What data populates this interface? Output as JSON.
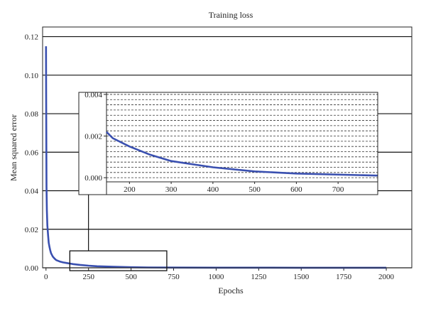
{
  "chart_data": {
    "type": "line",
    "title": "Training loss",
    "xlabel": "Epochs",
    "ylabel": "Mean squared error",
    "xlim": [
      -20,
      2150
    ],
    "ylim": [
      0,
      0.125
    ],
    "xticks": [
      0,
      250,
      500,
      750,
      1000,
      1250,
      1500,
      1750,
      2000
    ],
    "yticks": [
      0.0,
      0.02,
      0.04,
      0.06,
      0.08,
      0.1,
      0.12
    ],
    "xtick_labels": [
      "0",
      "250",
      "500",
      "750",
      "1000",
      "1250",
      "1500",
      "1750",
      "2000"
    ],
    "ytick_labels": [
      "0.00",
      "0.02",
      "0.04",
      "0.06",
      "0.08",
      "0.10",
      "0.12"
    ],
    "grid": "horizontal",
    "series": [
      {
        "color": "#3a50b0",
        "x": [
          0,
          1,
          2,
          3,
          5,
          8,
          12,
          16,
          20,
          25,
          30,
          40,
          50,
          60,
          80,
          100,
          120,
          140,
          160,
          200,
          250,
          300,
          400,
          500,
          600,
          800,
          1000,
          1250,
          1500,
          1750,
          2000
        ],
        "y": [
          0.115,
          0.09,
          0.06,
          0.042,
          0.03,
          0.022,
          0.017,
          0.013,
          0.011,
          0.009,
          0.0075,
          0.0058,
          0.0048,
          0.004,
          0.0033,
          0.0028,
          0.0025,
          0.0022,
          0.0019,
          0.0015,
          0.0011,
          0.0008,
          0.0005,
          0.0003,
          0.0002,
          0.0001,
          8e-05,
          6e-05,
          5e-05,
          4e-05,
          3e-05
        ]
      }
    ],
    "zoom_box": {
      "x": [
        140,
        710
      ],
      "y": [
        -0.0015,
        0.0088
      ]
    },
    "inset": {
      "xlim": [
        145,
        795
      ],
      "ylim": [
        -0.0002,
        0.0041
      ],
      "xticks": [
        200,
        300,
        400,
        500,
        600,
        700
      ],
      "yticks": [
        0.0,
        0.002,
        0.004
      ],
      "xtick_labels": [
        "200",
        "300",
        "400",
        "500",
        "600",
        "700"
      ],
      "ytick_labels": [
        "0.000",
        "0.002",
        "0.004"
      ],
      "grid_step": 0.00025
    }
  }
}
